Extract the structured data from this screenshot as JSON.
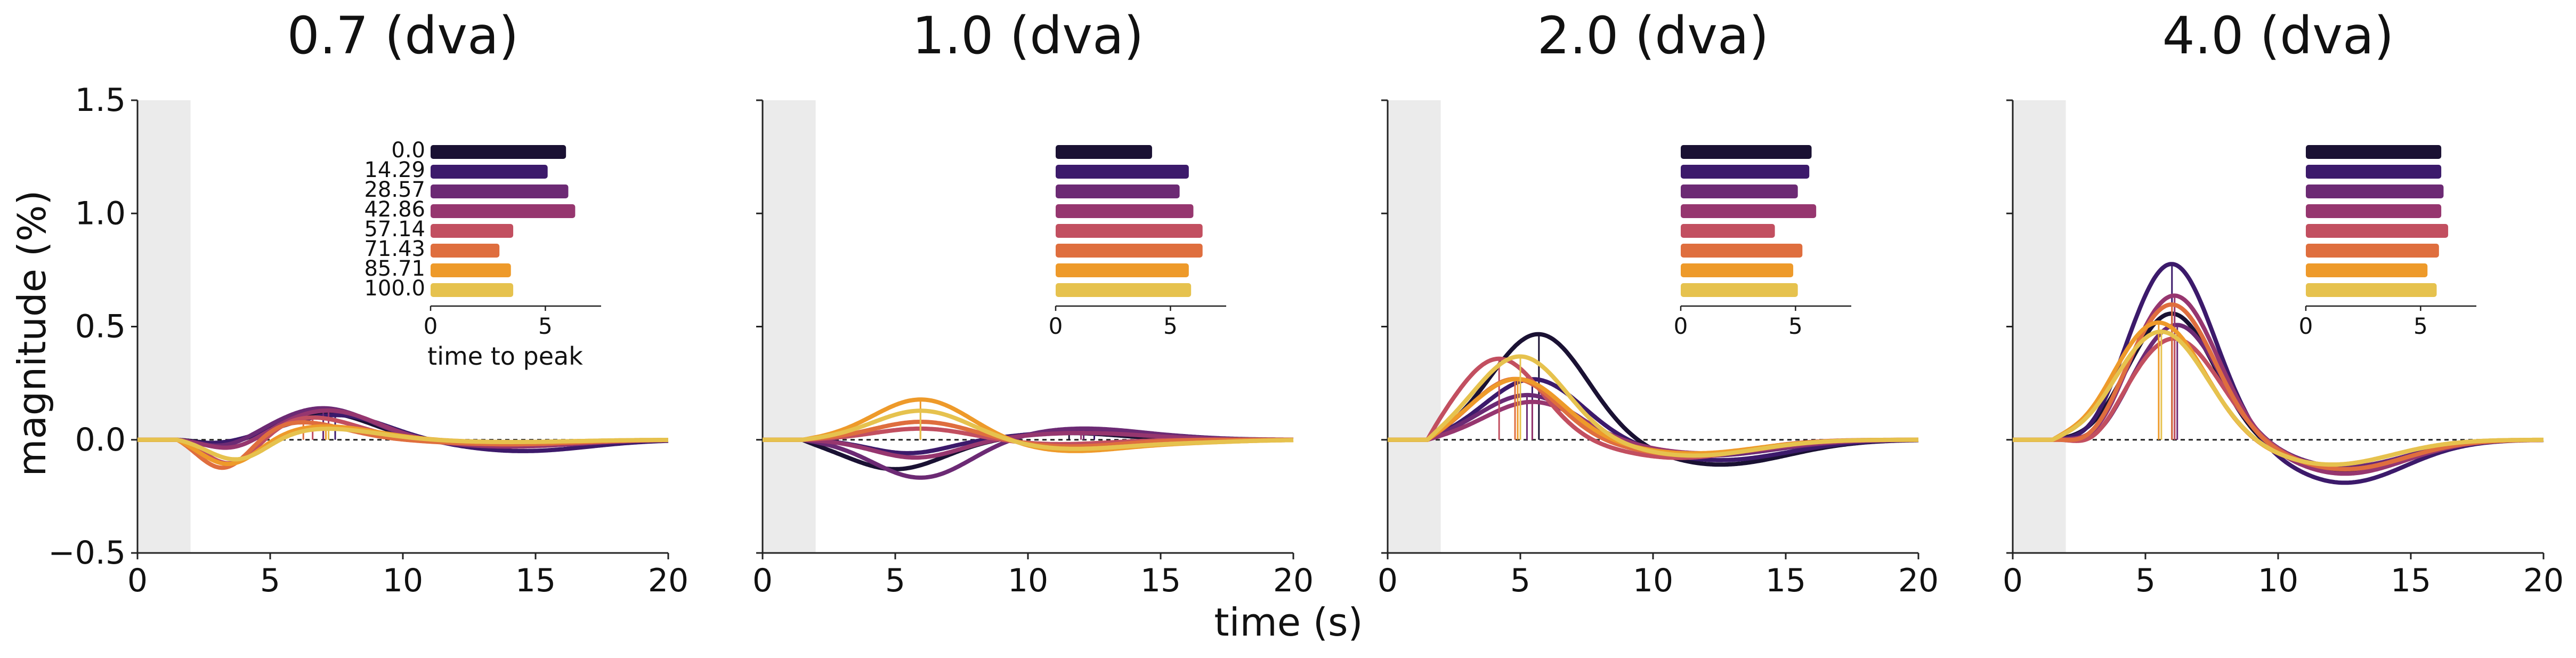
{
  "figure": {
    "shared_xlabel": "time (s)",
    "shared_ylabel": "magnitude (%)",
    "inset_xlabel": "time to peak",
    "palette": [
      "#1a1133",
      "#3c1a6b",
      "#6c2a74",
      "#96366f",
      "#c24f60",
      "#df6e3e",
      "#ee9a2a",
      "#e6c24e"
    ],
    "stim_shade_color": "#ebebeb"
  },
  "chart_data": [
    {
      "type": "line",
      "title": "0.7 (dva)",
      "xlim": [
        0,
        20
      ],
      "ylim": [
        -0.5,
        1.5
      ],
      "xticks": [
        0,
        5,
        10,
        15,
        20
      ],
      "yticks": [
        -0.5,
        0.0,
        0.5,
        1.0,
        1.5
      ],
      "ytick_labels": [
        "−0.5",
        "0.0",
        "0.5",
        "1.0",
        "1.5"
      ],
      "show_y_ticklabels": true,
      "stim_window": [
        0,
        2
      ],
      "series": [
        {
          "name": "0.0",
          "color": "#1a1133",
          "pos": [
            7.0,
            0.12,
            1.8
          ],
          "neg": [
            3.5,
            -0.03,
            1.0
          ],
          "undershoot": [
            14.0,
            -0.02,
            2.5
          ]
        },
        {
          "name": "14.29",
          "color": "#3c1a6b",
          "pos": [
            7.5,
            0.11,
            1.9
          ],
          "neg": [
            3.0,
            -0.02,
            1.0
          ],
          "undershoot": [
            14.5,
            -0.05,
            2.5
          ]
        },
        {
          "name": "28.57",
          "color": "#6c2a74",
          "pos": [
            7.0,
            0.14,
            1.8
          ],
          "neg": [
            3.3,
            -0.04,
            1.0
          ],
          "undershoot": [
            14.0,
            -0.03,
            2.5
          ]
        },
        {
          "name": "42.86",
          "color": "#96366f",
          "pos": [
            7.2,
            0.13,
            1.8
          ],
          "neg": [
            3.6,
            -0.05,
            1.0
          ],
          "undershoot": [
            14.0,
            -0.03,
            2.5
          ]
        },
        {
          "name": "57.14",
          "color": "#c24f60",
          "pos": [
            6.5,
            0.1,
            1.8
          ],
          "neg": [
            3.6,
            -0.13,
            1.0
          ],
          "undershoot": [
            14.0,
            -0.02,
            2.5
          ]
        },
        {
          "name": "71.43",
          "color": "#df6e3e",
          "pos": [
            6.0,
            0.08,
            1.8
          ],
          "neg": [
            3.3,
            -0.15,
            1.0
          ],
          "undershoot": [
            14.0,
            -0.02,
            2.5
          ]
        },
        {
          "name": "85.71",
          "color": "#ee9a2a",
          "pos": [
            7.0,
            0.06,
            2.0
          ],
          "neg": [
            3.5,
            -0.12,
            1.1
          ],
          "undershoot": [
            14.0,
            -0.01,
            2.5
          ]
        },
        {
          "name": "100.0",
          "color": "#e6c24e",
          "pos": [
            7.0,
            0.05,
            2.0
          ],
          "neg": [
            3.8,
            -0.1,
            1.1
          ],
          "undershoot": [
            14.0,
            -0.01,
            2.5
          ]
        }
      ],
      "inset": {
        "xlabel": "time to peak",
        "xticks": [
          0,
          5
        ],
        "xlim": [
          0,
          6.5
        ],
        "show_categories": true,
        "categories": [
          "0.0",
          "14.29",
          "28.57",
          "42.86",
          "57.14",
          "71.43",
          "85.71",
          "100.0"
        ],
        "values": [
          5.9,
          5.1,
          6.0,
          6.3,
          3.6,
          3.0,
          3.5,
          3.6
        ]
      }
    },
    {
      "type": "line",
      "title": "1.0 (dva)",
      "xlim": [
        0,
        20
      ],
      "ylim": [
        -0.5,
        1.5
      ],
      "xticks": [
        0,
        5,
        10,
        15,
        20
      ],
      "yticks": [
        -0.5,
        0.0,
        0.5,
        1.0,
        1.5
      ],
      "show_y_ticklabels": false,
      "stim_window": [
        0,
        2
      ],
      "series": [
        {
          "name": "0.0",
          "color": "#1a1133",
          "pos": [
            11.5,
            0.03,
            2.0
          ],
          "neg": [
            5.0,
            -0.13,
            1.8
          ],
          "undershoot": [
            16.0,
            0.0,
            2.0
          ]
        },
        {
          "name": "14.29",
          "color": "#3c1a6b",
          "pos": [
            12.5,
            0.04,
            2.5
          ],
          "neg": [
            5.5,
            -0.06,
            1.5
          ],
          "undershoot": [
            16.0,
            0.0,
            2.0
          ]
        },
        {
          "name": "28.57",
          "color": "#6c2a74",
          "pos": [
            12.0,
            0.05,
            2.5
          ],
          "neg": [
            6.0,
            -0.17,
            1.8
          ],
          "undershoot": [
            16.0,
            0.0,
            2.0
          ]
        },
        {
          "name": "42.86",
          "color": "#96366f",
          "pos": [
            12.0,
            0.03,
            2.5
          ],
          "neg": [
            5.8,
            -0.08,
            1.6
          ],
          "undershoot": [
            16.0,
            0.0,
            2.0
          ]
        },
        {
          "name": "57.14",
          "color": "#c24f60",
          "pos": [
            6.0,
            0.05,
            1.8
          ],
          "neg": [
            11.0,
            -0.02,
            2.0
          ],
          "undershoot": [
            16.0,
            0.0,
            2.0
          ]
        },
        {
          "name": "71.43",
          "color": "#df6e3e",
          "pos": [
            6.0,
            0.08,
            1.8
          ],
          "neg": [
            11.5,
            -0.03,
            2.0
          ],
          "undershoot": [
            16.0,
            0.0,
            2.0
          ]
        },
        {
          "name": "85.71",
          "color": "#ee9a2a",
          "pos": [
            6.0,
            0.18,
            1.8
          ],
          "neg": [
            11.5,
            -0.05,
            2.2
          ],
          "undershoot": [
            16.0,
            -0.01,
            2.0
          ]
        },
        {
          "name": "100.0",
          "color": "#e6c24e",
          "pos": [
            6.0,
            0.13,
            1.8
          ],
          "neg": [
            11.5,
            -0.04,
            2.2
          ],
          "undershoot": [
            16.0,
            -0.01,
            2.0
          ]
        }
      ],
      "inset": {
        "xlabel": "",
        "xticks": [
          0,
          5
        ],
        "xlim": [
          0,
          6.5
        ],
        "show_categories": false,
        "categories": [
          "0.0",
          "14.29",
          "28.57",
          "42.86",
          "57.14",
          "71.43",
          "85.71",
          "100.0"
        ],
        "values": [
          4.2,
          5.8,
          5.4,
          6.0,
          6.4,
          6.4,
          5.8,
          5.9
        ]
      }
    },
    {
      "type": "line",
      "title": "2.0 (dva)",
      "xlim": [
        0,
        20
      ],
      "ylim": [
        -0.5,
        1.5
      ],
      "xticks": [
        0,
        5,
        10,
        15,
        20
      ],
      "yticks": [
        -0.5,
        0.0,
        0.5,
        1.0,
        1.5
      ],
      "show_y_ticklabels": false,
      "stim_window": [
        0,
        2
      ],
      "series": [
        {
          "name": "0.0",
          "color": "#1a1133",
          "pos": [
            5.7,
            0.47,
            1.8
          ],
          "neg": [
            12.5,
            -0.11,
            2.6
          ],
          "undershoot": [
            17.0,
            0.0,
            2.0
          ]
        },
        {
          "name": "14.29",
          "color": "#3c1a6b",
          "pos": [
            5.5,
            0.27,
            1.8
          ],
          "neg": [
            12.5,
            -0.09,
            2.6
          ],
          "undershoot": [
            17.0,
            0.0,
            2.0
          ]
        },
        {
          "name": "28.57",
          "color": "#6c2a74",
          "pos": [
            5.3,
            0.2,
            1.8
          ],
          "neg": [
            12.0,
            -0.07,
            2.6
          ],
          "undershoot": [
            17.0,
            0.0,
            2.0
          ]
        },
        {
          "name": "42.86",
          "color": "#96366f",
          "pos": [
            5.5,
            0.17,
            1.8
          ],
          "neg": [
            12.0,
            -0.06,
            2.6
          ],
          "undershoot": [
            17.0,
            0.0,
            2.0
          ]
        },
        {
          "name": "57.14",
          "color": "#c24f60",
          "pos": [
            4.2,
            0.36,
            1.6
          ],
          "neg": [
            11.0,
            -0.08,
            2.4
          ],
          "undershoot": [
            17.0,
            0.0,
            2.0
          ]
        },
        {
          "name": "71.43",
          "color": "#df6e3e",
          "pos": [
            4.8,
            0.27,
            1.6
          ],
          "neg": [
            11.5,
            -0.07,
            2.4
          ],
          "undershoot": [
            17.0,
            0.0,
            2.0
          ]
        },
        {
          "name": "85.71",
          "color": "#ee9a2a",
          "pos": [
            4.9,
            0.27,
            1.7
          ],
          "neg": [
            11.5,
            -0.06,
            2.4
          ],
          "undershoot": [
            17.0,
            0.0,
            2.0
          ]
        },
        {
          "name": "100.0",
          "color": "#e6c24e",
          "pos": [
            5.0,
            0.37,
            1.7
          ],
          "neg": [
            11.5,
            -0.07,
            2.4
          ],
          "undershoot": [
            17.0,
            0.0,
            2.0
          ]
        }
      ],
      "inset": {
        "xlabel": "",
        "xticks": [
          0,
          5
        ],
        "xlim": [
          0,
          6.5
        ],
        "show_categories": false,
        "categories": [
          "0.0",
          "14.29",
          "28.57",
          "42.86",
          "57.14",
          "71.43",
          "85.71",
          "100.0"
        ],
        "values": [
          5.7,
          5.6,
          5.1,
          5.9,
          4.1,
          5.3,
          4.9,
          5.1
        ]
      }
    },
    {
      "type": "line",
      "title": "4.0 (dva)",
      "xlim": [
        0,
        20
      ],
      "ylim": [
        -0.5,
        1.5
      ],
      "xticks": [
        0,
        5,
        10,
        15,
        20
      ],
      "yticks": [
        -0.5,
        0.0,
        0.5,
        1.0,
        1.5
      ],
      "show_y_ticklabels": false,
      "stim_window": [
        0,
        2
      ],
      "series": [
        {
          "name": "0.0",
          "color": "#1a1133",
          "pos": [
            6.0,
            0.56,
            1.6
          ],
          "neg": [
            12.5,
            -0.14,
            2.3
          ],
          "undershoot": [
            3.0,
            -0.02,
            0.8
          ]
        },
        {
          "name": "14.29",
          "color": "#3c1a6b",
          "pos": [
            6.0,
            0.78,
            1.6
          ],
          "neg": [
            12.5,
            -0.19,
            2.3
          ],
          "undershoot": [
            3.0,
            -0.05,
            0.8
          ]
        },
        {
          "name": "28.57",
          "color": "#6c2a74",
          "pos": [
            6.2,
            0.51,
            1.6
          ],
          "neg": [
            12.5,
            -0.12,
            2.3
          ],
          "undershoot": [
            3.2,
            -0.05,
            0.8
          ]
        },
        {
          "name": "42.86",
          "color": "#96366f",
          "pos": [
            6.1,
            0.64,
            1.6
          ],
          "neg": [
            12.5,
            -0.15,
            2.3
          ],
          "undershoot": [
            3.2,
            -0.06,
            0.8
          ]
        },
        {
          "name": "57.14",
          "color": "#c24f60",
          "pos": [
            6.1,
            0.45,
            1.7
          ],
          "neg": [
            12.5,
            -0.13,
            2.3
          ],
          "undershoot": [
            3.1,
            -0.07,
            0.8
          ]
        },
        {
          "name": "71.43",
          "color": "#df6e3e",
          "pos": [
            6.0,
            0.6,
            1.6
          ],
          "neg": [
            12.5,
            -0.13,
            2.3
          ],
          "undershoot": [
            3.0,
            -0.06,
            0.8
          ]
        },
        {
          "name": "85.71",
          "color": "#ee9a2a",
          "pos": [
            5.5,
            0.52,
            1.7
          ],
          "neg": [
            12.0,
            -0.11,
            2.3
          ],
          "undershoot": [
            3.0,
            -0.03,
            0.8
          ]
        },
        {
          "name": "100.0",
          "color": "#e6c24e",
          "pos": [
            5.6,
            0.48,
            1.7
          ],
          "neg": [
            12.0,
            -0.11,
            2.3
          ],
          "undershoot": [
            3.0,
            -0.02,
            0.8
          ]
        }
      ],
      "inset": {
        "xlabel": "",
        "xticks": [
          0,
          5
        ],
        "xlim": [
          0,
          6.5
        ],
        "show_categories": false,
        "categories": [
          "0.0",
          "14.29",
          "28.57",
          "42.86",
          "57.14",
          "71.43",
          "85.71",
          "100.0"
        ],
        "values": [
          5.9,
          5.9,
          6.0,
          5.9,
          6.2,
          5.8,
          5.3,
          5.7
        ]
      }
    }
  ]
}
